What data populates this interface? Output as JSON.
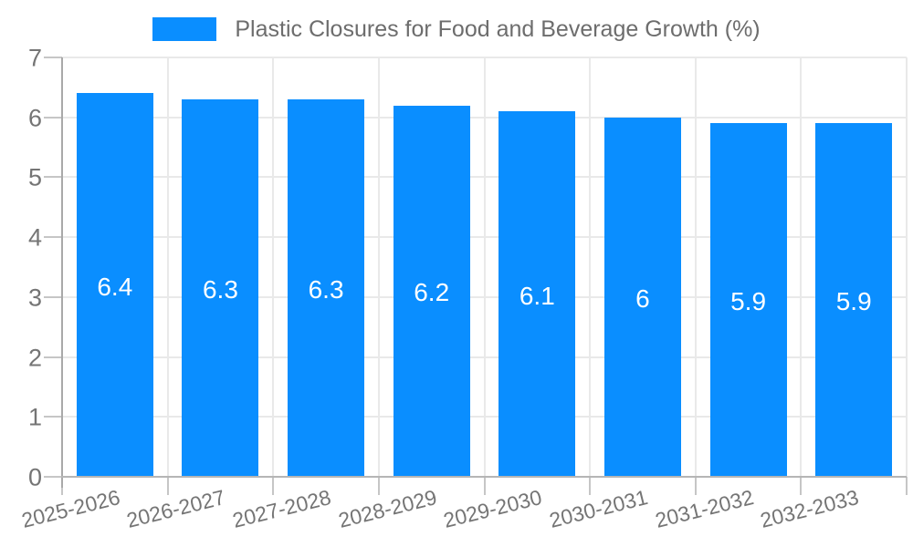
{
  "legend": {
    "label": "Plastic Closures for Food and Beverage Growth (%)"
  },
  "colors": {
    "bar": "#0a8eff",
    "value_label": "#ffffff",
    "grid_line": "#e9e9e9",
    "tick_line": "#c6c6c6",
    "axis_line": "#a9a9a9",
    "baseline": "#b5b5b5",
    "axis_text": "#757575",
    "legend_text": "#6d6d6d",
    "background": "#ffffff"
  },
  "chart_data": {
    "type": "bar",
    "title": "",
    "categories": [
      "2025-2026",
      "2026-2027",
      "2027-2028",
      "2028-2029",
      "2029-2030",
      "2030-2031",
      "2031-2032",
      "2032-2033"
    ],
    "series": [
      {
        "name": "Plastic Closures for Food and Beverage Growth (%)",
        "values": [
          6.4,
          6.3,
          6.3,
          6.2,
          6.1,
          6,
          5.9,
          5.9
        ]
      }
    ],
    "data_labels": [
      "6.4",
      "6.3",
      "6.3",
      "6.2",
      "6.1",
      "6",
      "5.9",
      "5.9"
    ],
    "xlabel": "",
    "ylabel": "",
    "ylim": [
      0,
      7
    ],
    "yticks": [
      0,
      1,
      2,
      3,
      4,
      5,
      6,
      7
    ],
    "grid": true,
    "legend_position": "top"
  }
}
